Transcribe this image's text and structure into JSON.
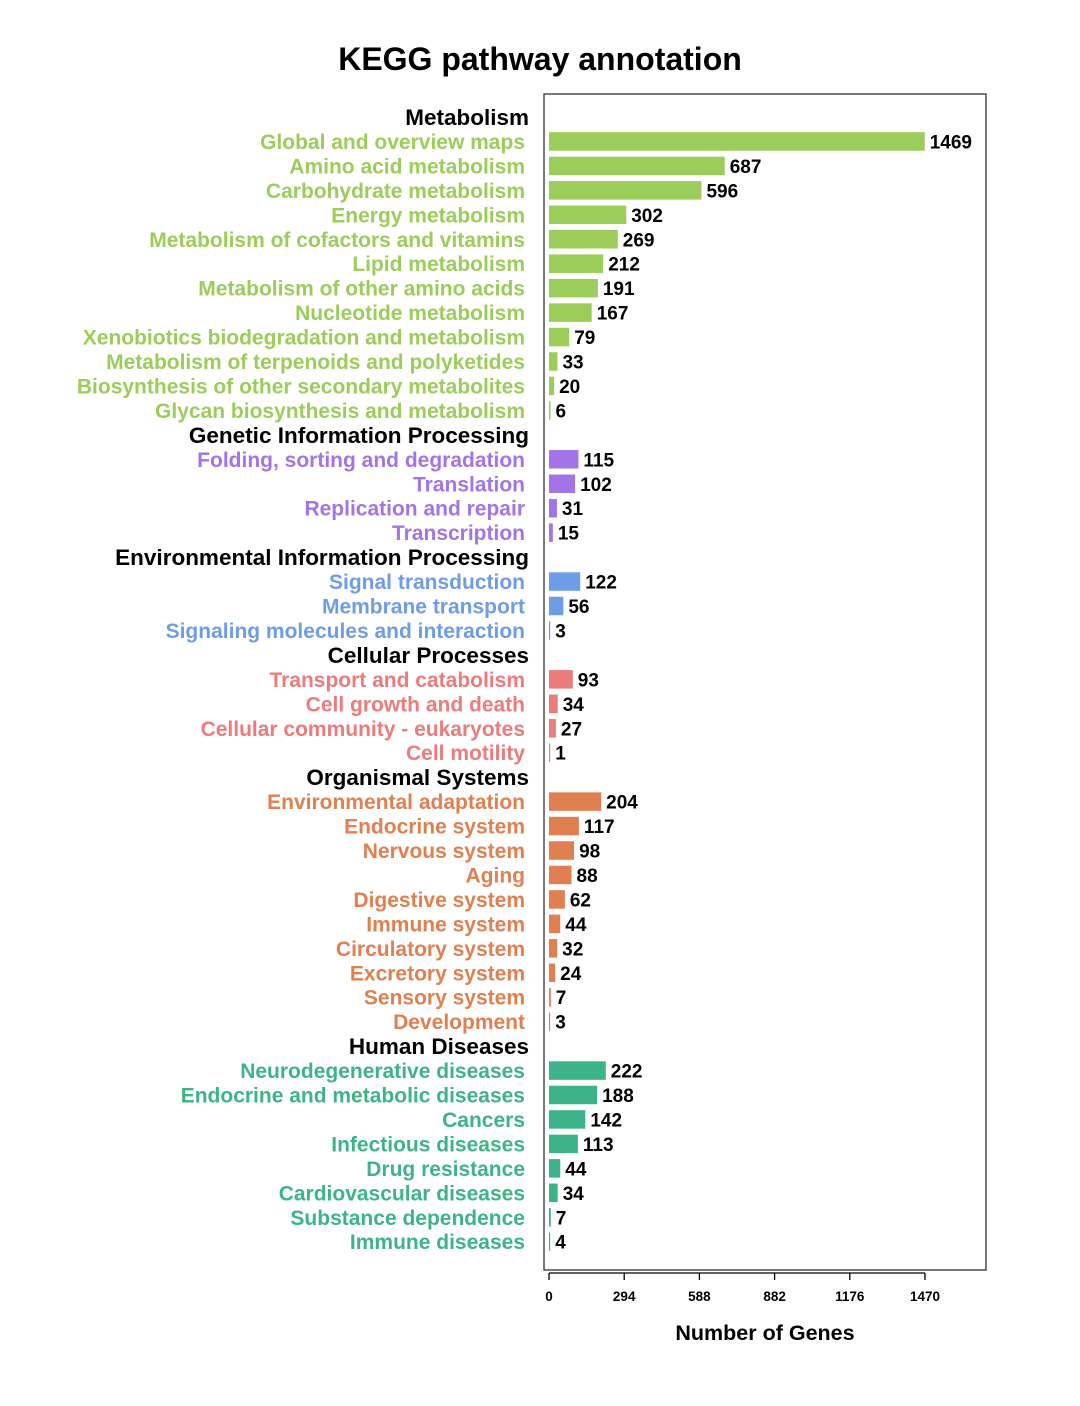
{
  "chart_data": {
    "type": "bar",
    "orientation": "horizontal",
    "title": "KEGG pathway annotation",
    "xlabel": "Number of Genes",
    "xlim": [
      0,
      1470
    ],
    "xticks": [
      "0",
      "294",
      "588",
      "882",
      "1176",
      "1470"
    ],
    "grid": false,
    "groups": [
      {
        "name": "Metabolism",
        "color": "#9ccc5a",
        "items": [
          {
            "label": "Global and overview maps",
            "value": 1469
          },
          {
            "label": "Amino acid metabolism",
            "value": 687
          },
          {
            "label": "Carbohydrate metabolism",
            "value": 596
          },
          {
            "label": "Energy metabolism",
            "value": 302
          },
          {
            "label": "Metabolism of cofactors and vitamins",
            "value": 269
          },
          {
            "label": "Lipid metabolism",
            "value": 212
          },
          {
            "label": "Metabolism of other amino acids",
            "value": 191
          },
          {
            "label": "Nucleotide metabolism",
            "value": 167
          },
          {
            "label": "Xenobiotics biodegradation and metabolism",
            "value": 79
          },
          {
            "label": "Metabolism of terpenoids and polyketides",
            "value": 33
          },
          {
            "label": "Biosynthesis of other secondary metabolites",
            "value": 20
          },
          {
            "label": "Glycan biosynthesis and metabolism",
            "value": 6
          }
        ]
      },
      {
        "name": "Genetic Information Processing",
        "color": "#a274e8",
        "items": [
          {
            "label": "Folding, sorting and degradation",
            "value": 115
          },
          {
            "label": "Translation",
            "value": 102
          },
          {
            "label": "Replication and repair",
            "value": 31
          },
          {
            "label": "Transcription",
            "value": 15
          }
        ]
      },
      {
        "name": "Environmental Information Processing",
        "color": "#6f9ce6",
        "items": [
          {
            "label": "Signal transduction",
            "value": 122
          },
          {
            "label": "Membrane transport",
            "value": 56
          },
          {
            "label": "Signaling molecules and interaction",
            "value": 3
          }
        ]
      },
      {
        "name": "Cellular Processes",
        "color": "#ec7b7b",
        "items": [
          {
            "label": "Transport and catabolism",
            "value": 93
          },
          {
            "label": "Cell growth and death",
            "value": 34
          },
          {
            "label": "Cellular community - eukaryotes",
            "value": 27
          },
          {
            "label": "Cell motility",
            "value": 1
          }
        ]
      },
      {
        "name": "Organismal Systems",
        "color": "#e07f4f",
        "items": [
          {
            "label": "Environmental adaptation",
            "value": 204
          },
          {
            "label": "Endocrine system",
            "value": 117
          },
          {
            "label": "Nervous system",
            "value": 98
          },
          {
            "label": "Aging",
            "value": 88
          },
          {
            "label": "Digestive system",
            "value": 62
          },
          {
            "label": "Immune system",
            "value": 44
          },
          {
            "label": "Circulatory system",
            "value": 32
          },
          {
            "label": "Excretory system",
            "value": 24
          },
          {
            "label": "Sensory system",
            "value": 7
          },
          {
            "label": "Development",
            "value": 3
          }
        ]
      },
      {
        "name": "Human Diseases",
        "color": "#3db487",
        "items": [
          {
            "label": "Neurodegenerative diseases",
            "value": 222
          },
          {
            "label": "Endocrine and metabolic diseases",
            "value": 188
          },
          {
            "label": "Cancers",
            "value": 142
          },
          {
            "label": "Infectious diseases",
            "value": 113
          },
          {
            "label": "Drug resistance",
            "value": 44
          },
          {
            "label": "Cardiovascular diseases",
            "value": 34
          },
          {
            "label": "Substance dependence",
            "value": 7
          },
          {
            "label": "Immune diseases",
            "value": 4
          }
        ]
      }
    ]
  }
}
